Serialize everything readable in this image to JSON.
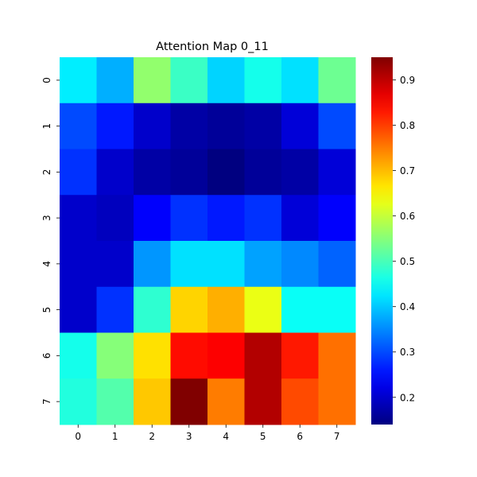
{
  "chart_data": {
    "type": "heatmap",
    "title": "Attention Map 0_11",
    "x_categories": [
      "0",
      "1",
      "2",
      "3",
      "4",
      "5",
      "6",
      "7"
    ],
    "y_categories": [
      "0",
      "1",
      "2",
      "3",
      "4",
      "5",
      "6",
      "7"
    ],
    "values": [
      [
        0.43,
        0.38,
        0.56,
        0.49,
        0.41,
        0.46,
        0.42,
        0.53
      ],
      [
        0.3,
        0.26,
        0.2,
        0.17,
        0.16,
        0.17,
        0.21,
        0.3
      ],
      [
        0.28,
        0.2,
        0.17,
        0.16,
        0.14,
        0.16,
        0.17,
        0.21
      ],
      [
        0.2,
        0.19,
        0.24,
        0.28,
        0.26,
        0.28,
        0.21,
        0.24
      ],
      [
        0.2,
        0.2,
        0.36,
        0.42,
        0.42,
        0.37,
        0.35,
        0.32
      ],
      [
        0.2,
        0.28,
        0.48,
        0.68,
        0.71,
        0.63,
        0.45,
        0.45
      ],
      [
        0.46,
        0.55,
        0.67,
        0.84,
        0.85,
        0.91,
        0.83,
        0.76
      ],
      [
        0.47,
        0.51,
        0.69,
        0.95,
        0.75,
        0.91,
        0.79,
        0.76
      ]
    ],
    "colormap": "jet",
    "vmin": 0.14,
    "vmax": 0.95,
    "colorbar_ticks": [
      "0.2",
      "0.3",
      "0.4",
      "0.5",
      "0.6",
      "0.7",
      "0.8",
      "0.9"
    ],
    "colorbar_tick_values": [
      0.2,
      0.3,
      0.4,
      0.5,
      0.6,
      0.7,
      0.8,
      0.9
    ],
    "xlabel": "",
    "ylabel": ""
  }
}
